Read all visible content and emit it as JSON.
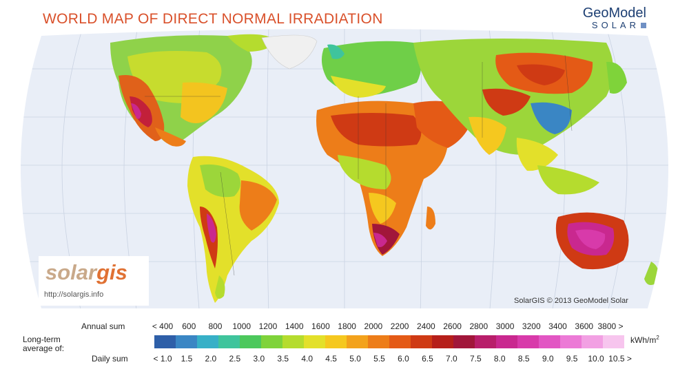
{
  "title": "WORLD MAP OF DIRECT NORMAL IRRADIATION",
  "brand": {
    "name": "GeoModel",
    "sub": "SOLAR"
  },
  "logo": {
    "word_a": "solar",
    "word_b": "gis",
    "url": "http://solargis.info"
  },
  "copyright": "SolarGIS © 2013 GeoModel Solar",
  "legend": {
    "longterm_line1": "Long-term",
    "longterm_line2": "average of:",
    "annual_label": "Annual sum",
    "daily_label": "Daily sum",
    "annual_ticks": [
      "< 400",
      "600",
      "800",
      "1000",
      "1200",
      "1400",
      "1600",
      "1800",
      "2000",
      "2200",
      "2400",
      "2600",
      "2800",
      "3000",
      "3200",
      "3400",
      "3600",
      "3800 >"
    ],
    "daily_ticks": [
      "< 1.0",
      "1.5",
      "2.0",
      "2.5",
      "3.0",
      "3.5",
      "4.0",
      "4.5",
      "5.0",
      "5.5",
      "6.0",
      "6.5",
      "7.0",
      "7.5",
      "8.0",
      "8.5",
      "9.0",
      "9.5",
      "10.0",
      "10.5 >"
    ],
    "unit": "kWh/m",
    "unit_sup": "2",
    "colors": [
      "#2e5fa8",
      "#3a86c4",
      "#37b0c7",
      "#3fc49c",
      "#4cc85c",
      "#7fd33a",
      "#b5dc2e",
      "#e3e02a",
      "#f5c81f",
      "#f3a21c",
      "#ed7d19",
      "#e45a16",
      "#cf3a14",
      "#b61f1a",
      "#a1163a",
      "#b81e6a",
      "#c9288f",
      "#d83aaa",
      "#e256c3",
      "#ec7ad6",
      "#f2a0e3",
      "#f7c5ee"
    ]
  },
  "map_colors": {
    "ocean": "#e9eef7",
    "grid": "#c9d2e2",
    "border": "#333333"
  }
}
